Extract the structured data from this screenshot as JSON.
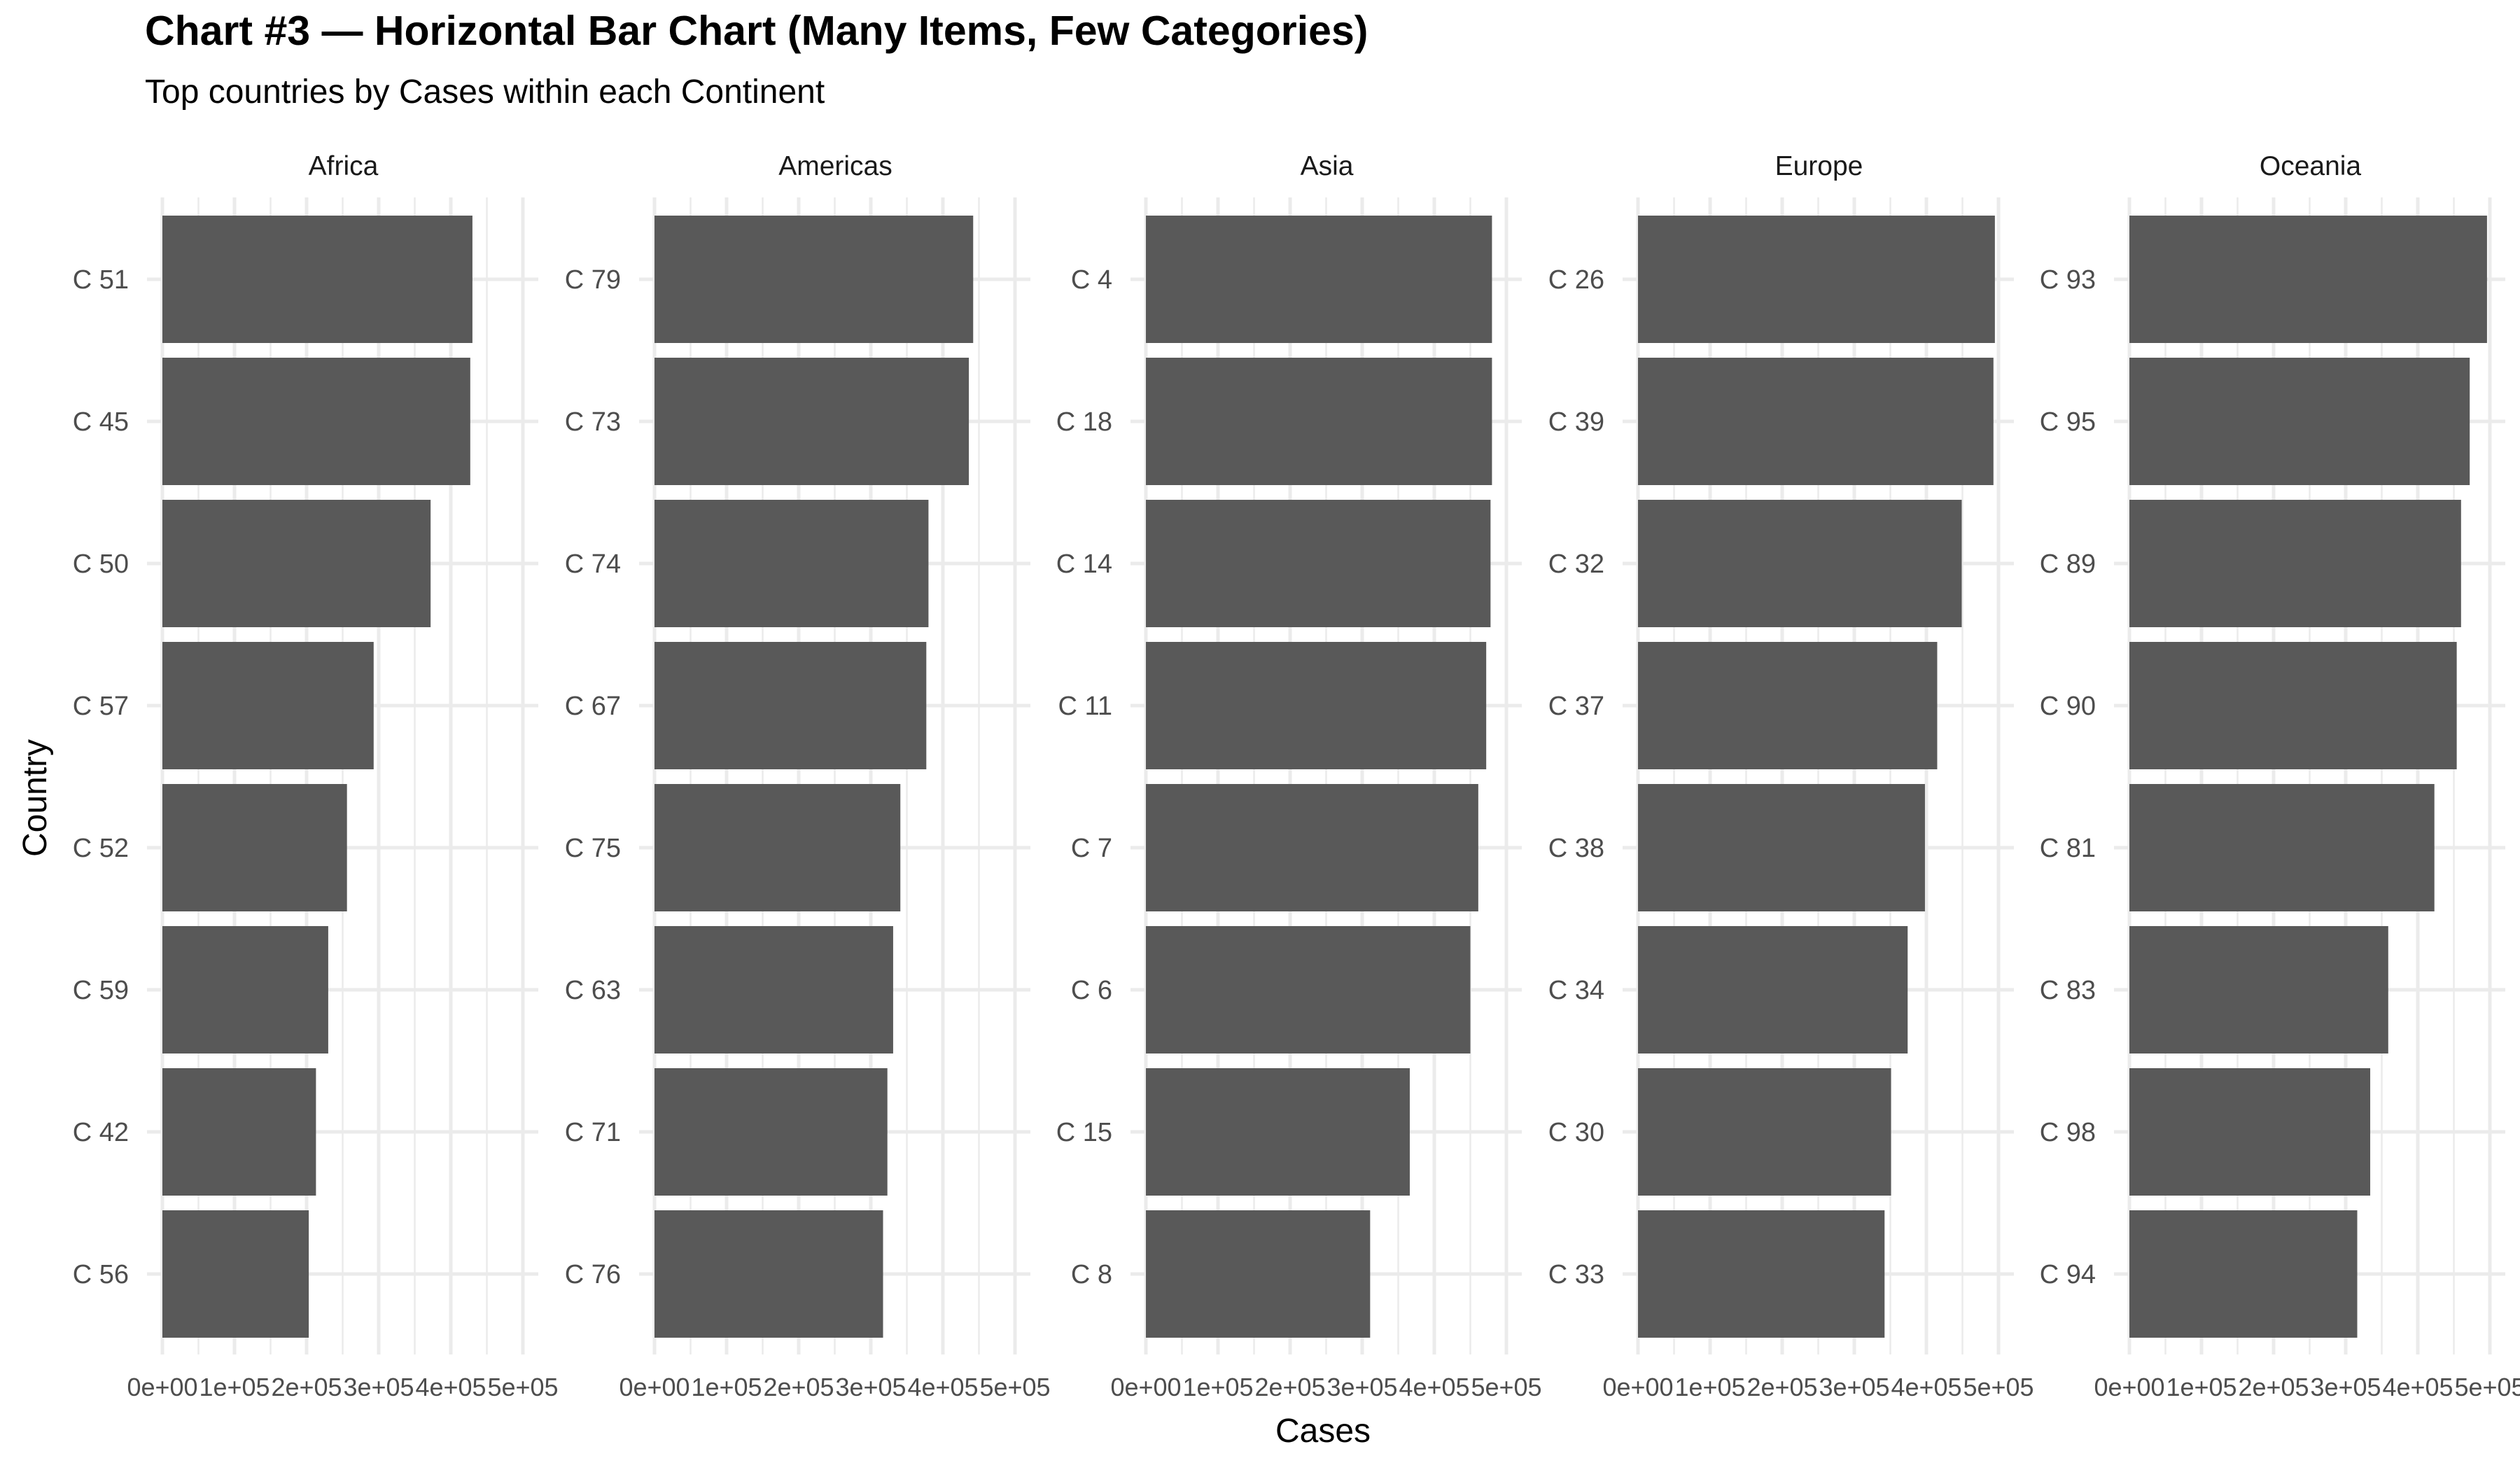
{
  "chart_data": {
    "type": "bar",
    "orientation": "horizontal",
    "title": "Chart #3 — Horizontal Bar Chart (Many Items, Few Categories)",
    "subtitle": "Top countries by Cases within each Continent",
    "xlabel": "Cases",
    "ylabel": "Country",
    "xlim": [
      0,
      500000
    ],
    "x_ticks": [
      "0e+00",
      "1e+05",
      "2e+05",
      "3e+05",
      "4e+05",
      "5e+05"
    ],
    "grid": true,
    "bar_color": "#595959",
    "panels": [
      {
        "facet": "Africa",
        "categories": [
          "C 51",
          "C 45",
          "C 50",
          "C 57",
          "C 52",
          "C 59",
          "C 42",
          "C 56"
        ],
        "values": [
          430000,
          427000,
          372000,
          293000,
          256000,
          230000,
          213000,
          203000
        ]
      },
      {
        "facet": "Americas",
        "categories": [
          "C 79",
          "C 73",
          "C 74",
          "C 67",
          "C 75",
          "C 63",
          "C 71",
          "C 76"
        ],
        "values": [
          442000,
          436000,
          380000,
          377000,
          341000,
          331000,
          323000,
          317000
        ]
      },
      {
        "facet": "Asia",
        "categories": [
          "C 4",
          "C 18",
          "C 14",
          "C 11",
          "C 7",
          "C 6",
          "C 15",
          "C 8"
        ],
        "values": [
          480000,
          480000,
          478000,
          472000,
          461000,
          450000,
          366000,
          311000
        ]
      },
      {
        "facet": "Europe",
        "categories": [
          "C 26",
          "C 39",
          "C 32",
          "C 37",
          "C 38",
          "C 34",
          "C 30",
          "C 33"
        ],
        "values": [
          495000,
          493000,
          449000,
          415000,
          398000,
          374000,
          351000,
          342000
        ]
      },
      {
        "facet": "Oceania",
        "categories": [
          "C 93",
          "C 95",
          "C 89",
          "C 90",
          "C 81",
          "C 83",
          "C 98",
          "C 94"
        ],
        "values": [
          496000,
          472000,
          460000,
          454000,
          423000,
          359000,
          334000,
          316000
        ]
      }
    ]
  }
}
